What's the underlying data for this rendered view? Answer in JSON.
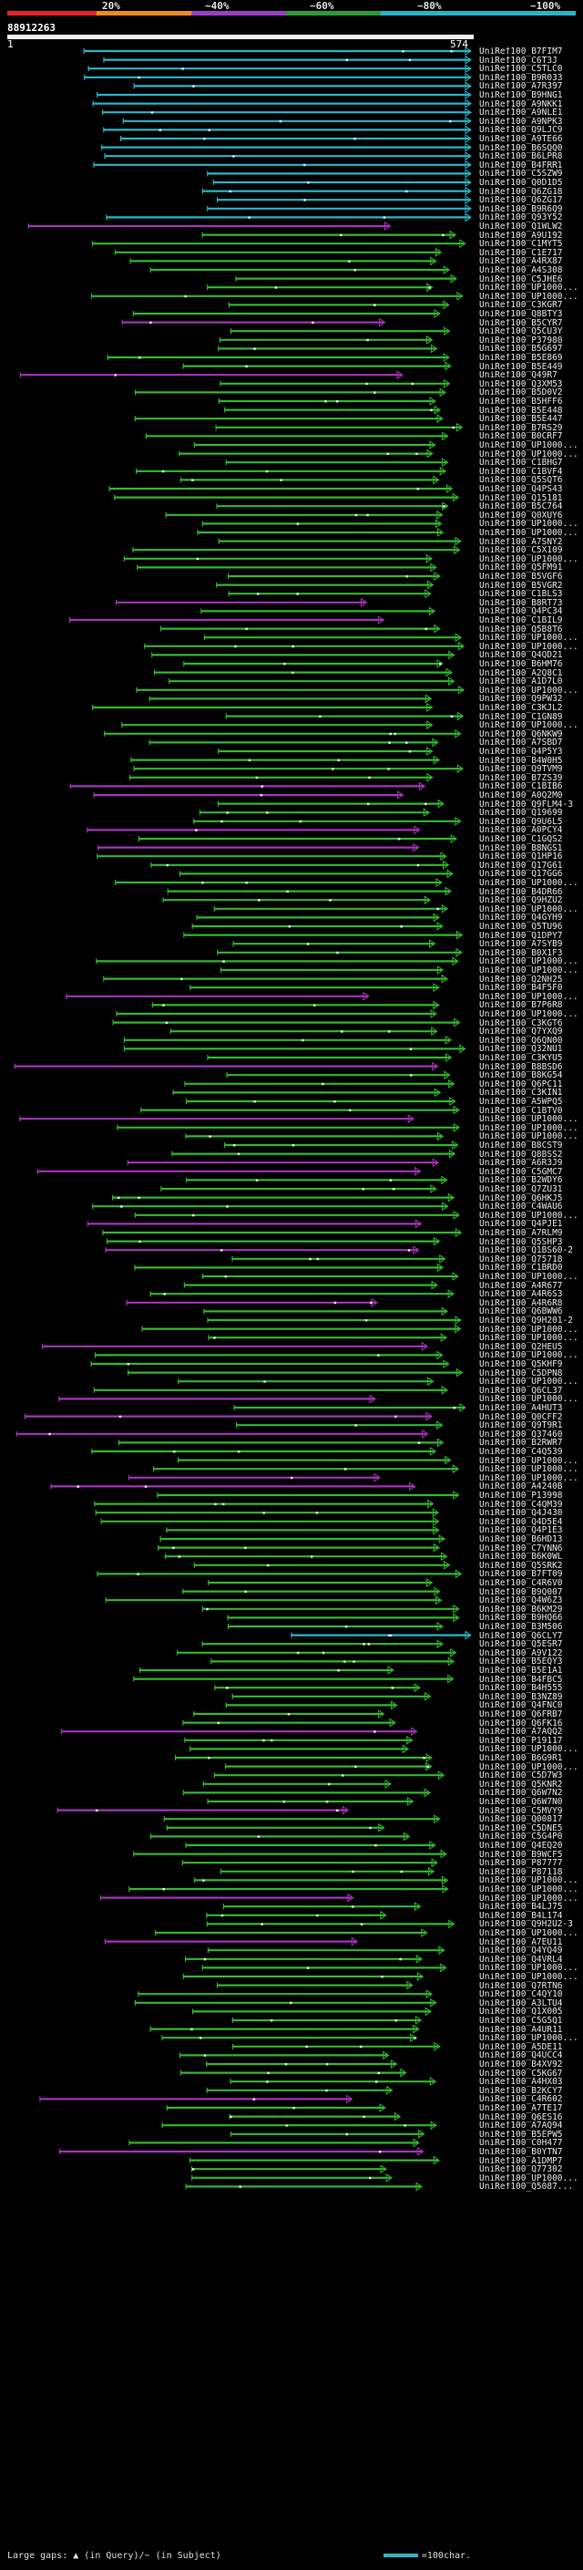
{
  "scale": {
    "labels": [
      "20%",
      "~40%",
      "~60%",
      "~80%",
      "~100%"
    ],
    "colors": [
      "#e8232a",
      "#f08a24",
      "#9b3ec7",
      "#2a9d37",
      "#2ab4c6"
    ]
  },
  "query": {
    "id": "88912263",
    "start": "1",
    "end": "574"
  },
  "legend": {
    "text_before": "Large gaps: ",
    "marker_query": "▲",
    "query_text": " (in Query)/",
    "marker_subject": "~",
    "subject_text": " (in Subject)",
    "scale_text": "=100char."
  },
  "colors": {
    "cyan": "#2ab4c6",
    "green": "#32b52e",
    "purple": "#a333b7",
    "white": "#e5e5e5"
  },
  "hits": [
    "UniRef100_B7FIM7",
    "UniRef100_C6T3J",
    "UniRef100_C5TLC0",
    "UniRef100_B9R033",
    "UniRef100_A7R397",
    "UniRef100_B9HNG1",
    "UniRef100_A9NKK1",
    "UniRef100_A9NLE1",
    "UniRef100_A9NPK3",
    "UniRef100_Q9LJC9",
    "UniRef100_A9TE66",
    "UniRef100_B6SQQ0",
    "UniRef100_B6LPR8",
    "UniRef100_B4FRR1",
    "UniRef100_C5SZW9",
    "UniRef100_Q0D1D5",
    "UniRef100_Q6ZG18",
    "UniRef100_Q6ZG17",
    "UniRef100_B9R6Q9",
    "UniRef100_Q93Y52",
    "UniRef100_Q1WLW2",
    "UniRef100_A9U192",
    "UniRef100_C1MYT5",
    "UniRef100_C1E717",
    "UniRef100_A4RX87",
    "UniRef100_A4S308",
    "UniRef100_C5JHE6",
    "UniRef100_UP1000...",
    "UniRef100_UP1000...",
    "UniRef100_C3KGR7",
    "UniRef100_Q8BTY3",
    "UniRef100_B5CYR7",
    "UniRef100_Q5CU3Y",
    "UniRef100_P37980",
    "UniRef100_B5G697",
    "UniRef100_B5E869",
    "UniRef100_B5E449",
    "UniRef100_Q49R7",
    "UniRef100_Q3XM53",
    "UniRef100_B5D0V2",
    "UniRef100_B5HFF6",
    "UniRef100_B5E448",
    "UniRef100_B5E447",
    "UniRef100_B7RS29",
    "UniRef100_B0CRF7",
    "UniRef100_UP1000...",
    "UniRef100_UP1000...",
    "UniRef100_C1BHG7",
    "UniRef100_C1BVF4",
    "UniRef100_Q5SQT6",
    "UniRef100_Q4PS43",
    "UniRef100_Q15181",
    "UniRef100_B5C764",
    "UniRef100_Q0XUY6",
    "UniRef100_UP1000...",
    "UniRef100_UP1000...",
    "UniRef100_A7SNY2",
    "UniRef100_C5X109",
    "UniRef100_UP1000...",
    "UniRef100_Q5FM91",
    "UniRef100_B5VGF6",
    "UniRef100_B5VGR2",
    "UniRef100_C1BLS3",
    "UniRef100_B8RT73",
    "UniRef100_Q4PC34",
    "UniRef100_C1BIL9",
    "UniRef100_Q5B8T6",
    "UniRef100_UP1000...",
    "UniRef100_UP1000...",
    "UniRef100_Q4QD21",
    "UniRef100_B6HM76",
    "UniRef100_A2Q8C1",
    "UniRef100_A1D7L0",
    "UniRef100_UP1000...",
    "UniRef100_Q9PW32",
    "UniRef100_C3KJL2",
    "UniRef100_C1GN89",
    "UniRef100_UP1000...",
    "UniRef100_Q6NKW9",
    "UniRef100_A7SBD7",
    "UniRef100_Q4P5Y3",
    "UniRef100_B4W0H5",
    "UniRef100_Q9TVM9",
    "UniRef100_B7ZS39",
    "UniRef100_C1BIB6",
    "UniRef100_A0Q2M0",
    "UniRef100_Q9FLM4-3",
    "UniRef100_Q19699",
    "UniRef100_Q9U6L5",
    "UniRef100_A0PCY4",
    "UniRef100_C1GQS2",
    "UniRef100_B8NGS1",
    "UniRef100_Q1HP16",
    "UniRef100_Q17G61",
    "UniRef100_Q17GG6",
    "UniRef100_UP1000...",
    "UniRef100_B4DR66",
    "UniRef100_Q9HZU2",
    "UniRef100_UP1000...",
    "UniRef100_Q4GYH9",
    "UniRef100_Q5TU96",
    "UniRef100_Q1DPY7",
    "UniRef100_A7SYB9",
    "UniRef100_B0X1F3",
    "UniRef100_UP1000...",
    "UniRef100_UP1000...",
    "UniRef100_Q2NH25",
    "UniRef100_B4F5F0",
    "UniRef100_UP1000...",
    "UniRef100_B7P6R8",
    "UniRef100_UP1000...",
    "UniRef100_C3KGT6",
    "UniRef100_Q7YXQ9",
    "UniRef100_Q6QN00",
    "UniRef100_Q32NU1",
    "UniRef100_C3KYU5",
    "UniRef100_B8BSD6",
    "UniRef100_B8KG54",
    "UniRef100_Q6PC11",
    "UniRef100_C3KIN1",
    "UniRef100_A5WPQ5",
    "UniRef100_C1BTV0",
    "UniRef100_UP1000...",
    "UniRef100_UP1000...",
    "UniRef100_UP1000...",
    "UniRef100_B8CST9",
    "UniRef100_Q8BSS2",
    "UniRef100_A6R3J9",
    "UniRef100_C5GMC7",
    "UniRef100_B2WDY6",
    "UniRef100_Q7ZU31",
    "UniRef100_Q6HKJ5",
    "UniRef100_C4WAU6",
    "UniRef100_UP1000...",
    "UniRef100_Q4PJE1",
    "UniRef100_A7RLM9",
    "UniRef100_Q5SHP3",
    "UniRef100_Q1BS60-2",
    "UniRef100_Q75718",
    "UniRef100_C1BRD0",
    "UniRef100_UP1000...",
    "UniRef100_A4R677",
    "UniRef100_A4R6S3",
    "UniRef100_A4R6R8",
    "UniRef100_Q6BWW6",
    "UniRef100_Q9H201-2",
    "UniRef100_UP1000...",
    "UniRef100_UP1000...",
    "UniRef100_Q2HEU5",
    "UniRef100_UP1000...",
    "UniRef100_Q5KHF9",
    "UniRef100_C5DPN8",
    "UniRef100_UP1000...",
    "UniRef100_Q6CL37",
    "UniRef100_UP1000...",
    "UniRef100_A4HUT3",
    "UniRef100_Q0CFF2",
    "UniRef100_Q9T9R1",
    "UniRef100_Q37460",
    "UniRef100_B2RWR7",
    "UniRef100_C4Q539",
    "UniRef100_UP1000...",
    "UniRef100_UP1000...",
    "UniRef100_UP1000...",
    "UniRef100_A4240B",
    "UniRef100_P13998",
    "UniRef100_C4QM39",
    "UniRef100_Q4J430",
    "UniRef100_Q4D5E4",
    "UniRef100_Q4P1E3",
    "UniRef100_B6HD13",
    "UniRef100_C7YNN6",
    "UniRef100_B6K0WL",
    "UniRef100_Q5SRK2",
    "UniRef100_B7FT09",
    "UniRef100_C4R6V0",
    "UniRef100_B9Q007",
    "UniRef100_Q4W6Z3",
    "UniRef100_B6KM29",
    "UniRef100_B9HQ66",
    "UniRef100_B3M506",
    "UniRef100_Q6CLY7",
    "UniRef100_Q5ESR7",
    "UniRef100_A9V122",
    "UniRef100_B5EQY3",
    "UniRef100_B5E1A1",
    "UniRef100_B4FBC5",
    "UniRef100_B4H555",
    "UniRef100_B3NZ89",
    "UniRef100_Q4FNC0",
    "UniRef100_Q6FRB7",
    "UniRef100_Q6FK16",
    "UniRef100_A7AQQ2",
    "UniRef100_P19117",
    "UniRef100_UP1000...",
    "UniRef100_B6G9R1",
    "UniRef100_UP1000...",
    "UniRef100_C5D7W3",
    "UniRef100_Q5KNR2",
    "UniRef100_Q6W7N2",
    "UniRef100_Q6W7N0",
    "UniRef100_C5MVY9",
    "UniRef100_Q00817",
    "UniRef100_C5DNE5",
    "UniRef100_C5G4P0",
    "UniRef100_Q4EQ20",
    "UniRef100_B9WCF5",
    "UniRef100_P87777",
    "UniRef100_P87118",
    "UniRef100_UP1000...",
    "UniRef100_UP1000...",
    "UniRef100_UP1000...",
    "UniRef100_B4LJ75",
    "UniRef100_B4L174",
    "UniRef100_Q9H2U2-3",
    "UniRef100_UP1000...",
    "UniRef100_A7EU11",
    "UniRef100_Q4YQ49",
    "UniRef100_Q4VRL4",
    "UniRef100_UP1000...",
    "UniRef100_UP1000...",
    "UniRef100_Q7RTN6",
    "UniRef100_C4QY10",
    "UniRef100_A3LTU4",
    "UniRef100_Q1X005",
    "UniRef100_C5G5Q1",
    "UniRef100_A4UR11",
    "UniRef100_UP1000...",
    "UniRef100_A5DE11",
    "UniRef100_Q4UCC4",
    "UniRef100_B4XV92",
    "UniRef100_C5KG67",
    "UniRef100_A4HX03",
    "UniRef100_B2KCY7",
    "UniRef100_C4R602",
    "UniRef100_A7TE17",
    "UniRef100_Q6ES16",
    "UniRef100_A7AQ94",
    "UniRef100_B5EPW5",
    "UniRef100_C0H477",
    "UniRef100_B0YTN7",
    "UniRef100_A1DMP7",
    "UniRef100_Q77302",
    "UniRef100_UP1000...",
    "UniRef100_Q5087..."
  ]
}
